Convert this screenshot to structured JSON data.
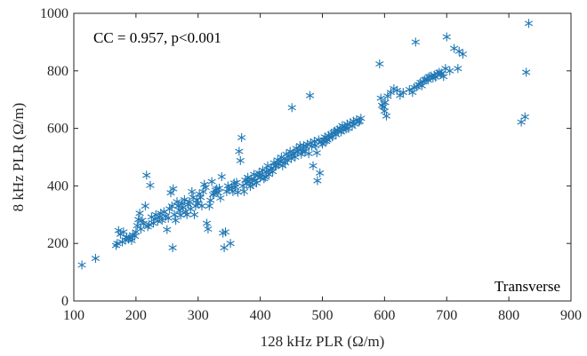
{
  "chart_data": {
    "type": "scatter",
    "xlabel": "128 kHz PLR (Ω/m)",
    "ylabel": "8 kHz PLR (Ω/m)",
    "xlim": [
      100,
      900
    ],
    "ylim": [
      0,
      1000
    ],
    "xticks": [
      "100",
      "200",
      "300",
      "400",
      "500",
      "600",
      "700",
      "800",
      "900"
    ],
    "yticks": [
      "0",
      "200",
      "400",
      "600",
      "800",
      "1000"
    ],
    "annotation": "CC = 0.957, p<0.001",
    "corner_label": "Transverse",
    "grid": false,
    "marker": "asterisk",
    "marker_color": "#1f77b4",
    "points": [
      [
        113,
        125
      ],
      [
        135,
        148
      ],
      [
        168,
        193
      ],
      [
        170,
        200
      ],
      [
        172,
        245
      ],
      [
        175,
        232
      ],
      [
        178,
        205
      ],
      [
        180,
        240
      ],
      [
        183,
        212
      ],
      [
        185,
        222
      ],
      [
        188,
        215
      ],
      [
        190,
        220
      ],
      [
        193,
        210
      ],
      [
        195,
        230
      ],
      [
        198,
        225
      ],
      [
        200,
        240
      ],
      [
        202,
        262
      ],
      [
        204,
        283
      ],
      [
        206,
        305
      ],
      [
        208,
        250
      ],
      [
        210,
        280
      ],
      [
        212,
        270
      ],
      [
        215,
        330
      ],
      [
        217,
        437
      ],
      [
        219,
        258
      ],
      [
        221,
        265
      ],
      [
        223,
        402
      ],
      [
        225,
        292
      ],
      [
        228,
        270
      ],
      [
        230,
        285
      ],
      [
        232,
        300
      ],
      [
        235,
        278
      ],
      [
        238,
        292
      ],
      [
        240,
        305
      ],
      [
        242,
        280
      ],
      [
        245,
        310
      ],
      [
        248,
        295
      ],
      [
        250,
        248
      ],
      [
        252,
        288
      ],
      [
        254,
        320
      ],
      [
        256,
        376
      ],
      [
        258,
        330
      ],
      [
        259,
        185
      ],
      [
        260,
        390
      ],
      [
        262,
        300
      ],
      [
        264,
        280
      ],
      [
        266,
        345
      ],
      [
        268,
        330
      ],
      [
        270,
        315
      ],
      [
        272,
        298
      ],
      [
        274,
        340
      ],
      [
        276,
        325
      ],
      [
        278,
        352
      ],
      [
        280,
        310
      ],
      [
        282,
        300
      ],
      [
        284,
        335
      ],
      [
        286,
        345
      ],
      [
        288,
        320
      ],
      [
        290,
        380
      ],
      [
        292,
        360
      ],
      [
        294,
        300
      ],
      [
        296,
        330
      ],
      [
        298,
        350
      ],
      [
        300,
        340
      ],
      [
        302,
        372
      ],
      [
        304,
        360
      ],
      [
        306,
        330
      ],
      [
        308,
        380
      ],
      [
        310,
        405
      ],
      [
        312,
        395
      ],
      [
        314,
        270
      ],
      [
        316,
        250
      ],
      [
        318,
        330
      ],
      [
        320,
        350
      ],
      [
        322,
        415
      ],
      [
        324,
        370
      ],
      [
        326,
        375
      ],
      [
        328,
        385
      ],
      [
        330,
        390
      ],
      [
        332,
        376
      ],
      [
        334,
        392
      ],
      [
        336,
        358
      ],
      [
        338,
        432
      ],
      [
        340,
        236
      ],
      [
        342,
        185
      ],
      [
        344,
        240
      ],
      [
        346,
        380
      ],
      [
        348,
        400
      ],
      [
        350,
        390
      ],
      [
        352,
        200
      ],
      [
        354,
        395
      ],
      [
        356,
        380
      ],
      [
        358,
        410
      ],
      [
        360,
        395
      ],
      [
        362,
        412
      ],
      [
        364,
        378
      ],
      [
        366,
        520
      ],
      [
        368,
        488
      ],
      [
        370,
        568
      ],
      [
        372,
        400
      ],
      [
        374,
        380
      ],
      [
        376,
        420
      ],
      [
        378,
        410
      ],
      [
        380,
        430
      ],
      [
        382,
        415
      ],
      [
        384,
        398
      ],
      [
        386,
        425
      ],
      [
        388,
        405
      ],
      [
        390,
        440
      ],
      [
        392,
        420
      ],
      [
        394,
        410
      ],
      [
        396,
        435
      ],
      [
        398,
        445
      ],
      [
        400,
        428
      ],
      [
        402,
        440
      ],
      [
        404,
        455
      ],
      [
        406,
        425
      ],
      [
        408,
        430
      ],
      [
        410,
        450
      ],
      [
        412,
        470
      ],
      [
        414,
        440
      ],
      [
        416,
        455
      ],
      [
        418,
        462
      ],
      [
        420,
        450
      ],
      [
        422,
        480
      ],
      [
        424,
        468
      ],
      [
        426,
        470
      ],
      [
        428,
        490
      ],
      [
        430,
        475
      ],
      [
        432,
        485
      ],
      [
        434,
        500
      ],
      [
        436,
        470
      ],
      [
        438,
        495
      ],
      [
        440,
        480
      ],
      [
        442,
        510
      ],
      [
        444,
        490
      ],
      [
        446,
        505
      ],
      [
        448,
        520
      ],
      [
        450,
        495
      ],
      [
        451,
        672
      ],
      [
        452,
        510
      ],
      [
        454,
        515
      ],
      [
        456,
        500
      ],
      [
        458,
        530
      ],
      [
        460,
        518
      ],
      [
        462,
        525
      ],
      [
        464,
        540
      ],
      [
        466,
        510
      ],
      [
        468,
        520
      ],
      [
        470,
        540
      ],
      [
        472,
        520
      ],
      [
        474,
        535
      ],
      [
        476,
        545
      ],
      [
        478,
        512
      ],
      [
        480,
        714
      ],
      [
        481,
        550
      ],
      [
        483,
        538
      ],
      [
        485,
        470
      ],
      [
        487,
        555
      ],
      [
        489,
        540
      ],
      [
        491,
        515
      ],
      [
        492,
        418
      ],
      [
        494,
        560
      ],
      [
        496,
        445
      ],
      [
        498,
        552
      ],
      [
        500,
        545
      ],
      [
        502,
        560
      ],
      [
        504,
        570
      ],
      [
        506,
        555
      ],
      [
        508,
        560
      ],
      [
        510,
        575
      ],
      [
        512,
        568
      ],
      [
        514,
        580
      ],
      [
        516,
        570
      ],
      [
        518,
        585
      ],
      [
        520,
        590
      ],
      [
        522,
        578
      ],
      [
        524,
        595
      ],
      [
        526,
        590
      ],
      [
        528,
        600
      ],
      [
        530,
        588
      ],
      [
        532,
        610
      ],
      [
        534,
        595
      ],
      [
        536,
        605
      ],
      [
        538,
        598
      ],
      [
        540,
        615
      ],
      [
        542,
        600
      ],
      [
        545,
        620
      ],
      [
        548,
        608
      ],
      [
        550,
        625
      ],
      [
        552,
        615
      ],
      [
        555,
        630
      ],
      [
        558,
        622
      ],
      [
        560,
        625
      ],
      [
        562,
        635
      ],
      [
        592,
        824
      ],
      [
        594,
        705
      ],
      [
        596,
        680
      ],
      [
        598,
        675
      ],
      [
        600,
        660
      ],
      [
        601,
        690
      ],
      [
        603,
        643
      ],
      [
        605,
        712
      ],
      [
        610,
        725
      ],
      [
        615,
        738
      ],
      [
        620,
        732
      ],
      [
        625,
        715
      ],
      [
        630,
        725
      ],
      [
        640,
        735
      ],
      [
        645,
        725
      ],
      [
        648,
        742
      ],
      [
        650,
        900
      ],
      [
        652,
        745
      ],
      [
        655,
        752
      ],
      [
        658,
        760
      ],
      [
        660,
        748
      ],
      [
        662,
        762
      ],
      [
        665,
        770
      ],
      [
        668,
        772
      ],
      [
        670,
        768
      ],
      [
        672,
        780
      ],
      [
        675,
        782
      ],
      [
        678,
        775
      ],
      [
        680,
        785
      ],
      [
        682,
        778
      ],
      [
        685,
        790
      ],
      [
        688,
        795
      ],
      [
        690,
        788
      ],
      [
        692,
        792
      ],
      [
        695,
        780
      ],
      [
        698,
        808
      ],
      [
        700,
        918
      ],
      [
        705,
        800
      ],
      [
        712,
        878
      ],
      [
        718,
        808
      ],
      [
        720,
        868
      ],
      [
        726,
        858
      ],
      [
        820,
        622
      ],
      [
        826,
        640
      ],
      [
        828,
        795
      ],
      [
        832,
        965
      ]
    ]
  }
}
